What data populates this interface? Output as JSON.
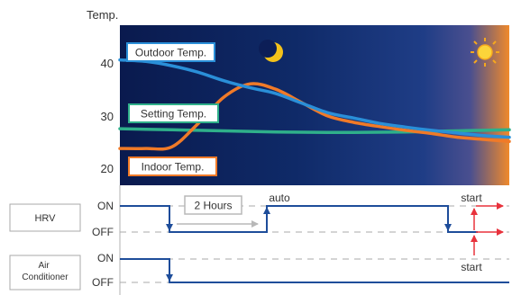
{
  "y_axis_title": "Temp.",
  "y_ticks": [
    "40",
    "30",
    "20"
  ],
  "chart_data": {
    "type": "line",
    "ylabel": "Temp.",
    "ylim": [
      16,
      46
    ],
    "series": [
      {
        "name": "Outdoor Temp.",
        "color": "#2a8fd8",
        "values": [
          39.5,
          39.2,
          38.4,
          37.2,
          35.6,
          34.3,
          33.2,
          31.4,
          29.6,
          28.6,
          27.6,
          26.9,
          26.3,
          25.8,
          25.3,
          25.0
        ]
      },
      {
        "name": "Setting Temp.",
        "color": "#2fb08a",
        "values": [
          26.6,
          26.5,
          26.4,
          26.3,
          26.2,
          26.1,
          26.0,
          25.95,
          25.9,
          25.9,
          25.95,
          26.0,
          26.1,
          26.2,
          26.3,
          26.4
        ]
      },
      {
        "name": "Indoor Temp.",
        "color": "#f07a28",
        "values": [
          22.9,
          22.9,
          23.2,
          27.5,
          32.5,
          35.0,
          34.0,
          31.5,
          29.0,
          27.8,
          27.0,
          26.3,
          25.7,
          25.0,
          24.6,
          24.2
        ]
      }
    ]
  },
  "legend": {
    "outdoor": "Outdoor Temp.",
    "setting": "Setting Temp.",
    "indoor": "Indoor Temp."
  },
  "icons": {
    "night": "moon-icon",
    "day": "sun-icon"
  },
  "hrv": {
    "label": "HRV",
    "on_label": "ON",
    "off_label": "OFF",
    "duration_label": "2 Hours",
    "auto_label": "auto",
    "start_label": "start"
  },
  "air_conditioner": {
    "label": "Air\nConditioner",
    "on_label": "ON",
    "off_label": "OFF",
    "start_label": "start"
  },
  "colors": {
    "sky_night": "#0a1a4e",
    "sky_mid": "#1f3d86",
    "sky_dawn": "#f08a2c",
    "signal_line": "#1e4d9a",
    "arrow": "#e8323c",
    "duration_arrow": "#b8b8b8",
    "moon": "#f4c21a",
    "sun": "#f6a81e"
  }
}
